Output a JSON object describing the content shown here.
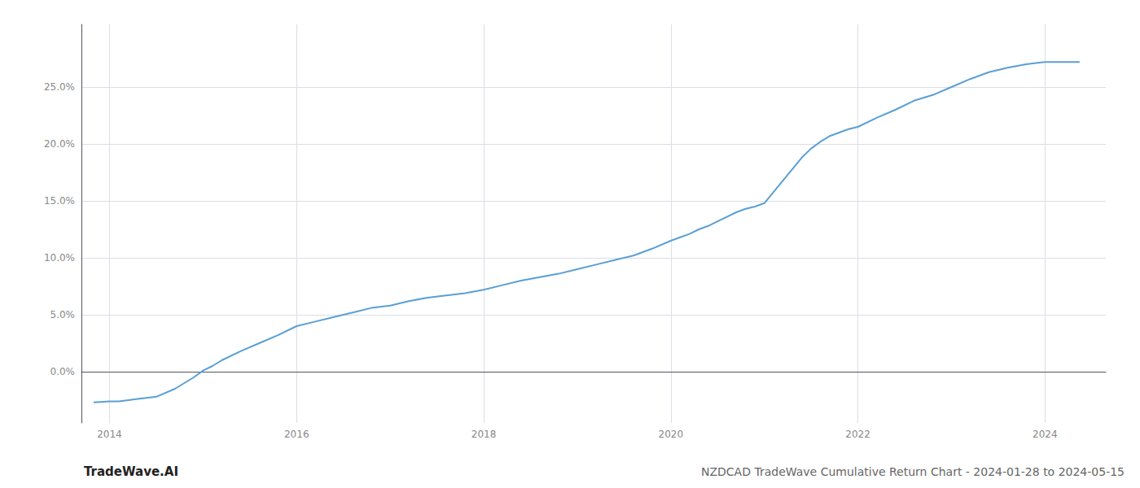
{
  "chart_data": {
    "type": "line",
    "title": "NZDCAD TradeWave Cumulative Return Chart - 2024-01-28 to 2024-05-15",
    "annotations": [
      "TradeWave.AI"
    ],
    "x": [
      2013.83,
      2014.0,
      2014.1,
      2014.2,
      2014.3,
      2014.5,
      2014.7,
      2014.9,
      2015.0,
      2015.1,
      2015.2,
      2015.4,
      2015.6,
      2015.8,
      2016.0,
      2016.2,
      2016.4,
      2016.6,
      2016.8,
      2017.0,
      2017.2,
      2017.4,
      2017.6,
      2017.8,
      2018.0,
      2018.2,
      2018.4,
      2018.6,
      2018.8,
      2019.0,
      2019.2,
      2019.4,
      2019.6,
      2019.8,
      2020.0,
      2020.1,
      2020.2,
      2020.3,
      2020.4,
      2020.5,
      2020.6,
      2020.7,
      2020.8,
      2020.9,
      2021.0,
      2021.1,
      2021.2,
      2021.3,
      2021.4,
      2021.5,
      2021.6,
      2021.7,
      2021.8,
      2021.9,
      2022.0,
      2022.2,
      2022.4,
      2022.6,
      2022.8,
      2023.0,
      2023.2,
      2023.4,
      2023.6,
      2023.8,
      2024.0,
      2024.1,
      2024.37
    ],
    "values": [
      -0.027,
      -0.026,
      -0.026,
      -0.025,
      -0.024,
      -0.022,
      -0.015,
      -0.005,
      0.001,
      0.005,
      0.01,
      0.018,
      0.025,
      0.032,
      0.04,
      0.044,
      0.048,
      0.052,
      0.056,
      0.058,
      0.062,
      0.065,
      0.067,
      0.069,
      0.072,
      0.076,
      0.08,
      0.083,
      0.086,
      0.09,
      0.094,
      0.098,
      0.102,
      0.108,
      0.115,
      0.118,
      0.121,
      0.125,
      0.128,
      0.132,
      0.136,
      0.14,
      0.143,
      0.145,
      0.148,
      0.158,
      0.168,
      0.178,
      0.188,
      0.196,
      0.202,
      0.207,
      0.21,
      0.213,
      0.215,
      0.223,
      0.23,
      0.238,
      0.243,
      0.25,
      0.257,
      0.263,
      0.267,
      0.27,
      0.272,
      0.272,
      0.272
    ],
    "color": "#5a9fd4",
    "xlim": [
      2013.7,
      2024.65
    ],
    "ylim": [
      -0.045,
      0.305
    ],
    "xticks": [
      2014,
      2016,
      2018,
      2020,
      2022,
      2024
    ],
    "yticks": [
      {
        "value": 0.0,
        "label": "0.0%"
      },
      {
        "value": 0.05,
        "label": "5.0%"
      },
      {
        "value": 0.1,
        "label": "10.0%"
      },
      {
        "value": 0.15,
        "label": "15.0%"
      },
      {
        "value": 0.2,
        "label": "20.0%"
      },
      {
        "value": 0.25,
        "label": "25.0%"
      }
    ],
    "grid": true
  }
}
